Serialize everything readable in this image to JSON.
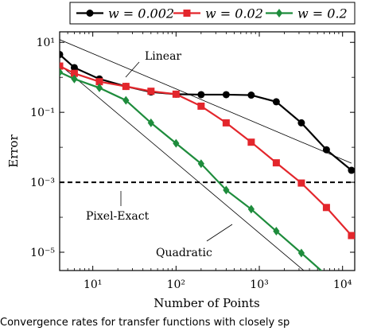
{
  "caption": "Convergence rates for transfer functions with closely sp",
  "chart_data": {
    "type": "line",
    "xlabel": "Number of Points",
    "ylabel": "Error",
    "xscale": "log",
    "yscale": "log",
    "xlim": [
      4,
      14000
    ],
    "ylim": [
      3e-06,
      20
    ],
    "x_ticks": [
      10,
      100,
      1000,
      10000
    ],
    "x_tick_labels": [
      "10¹",
      "10²",
      "10³",
      "10⁴"
    ],
    "y_ticks": [
      1e-05,
      0.001,
      0.1,
      10
    ],
    "y_tick_labels": [
      "10⁻⁵",
      "10⁻³",
      "10⁻¹",
      "10¹"
    ],
    "legend": "top",
    "series": [
      {
        "name": "w = 0.002",
        "color": "#000000",
        "marker": "circle",
        "x": [
          4,
          6,
          12,
          25,
          50,
          100,
          200,
          400,
          800,
          1600,
          3200,
          6400,
          12800
        ],
        "y": [
          4.5,
          1.9,
          0.9,
          0.55,
          0.38,
          0.33,
          0.32,
          0.32,
          0.31,
          0.2,
          0.05,
          0.0085,
          0.0022
        ]
      },
      {
        "name": "w = 0.02",
        "color": "#e3262c",
        "marker": "square",
        "x": [
          4,
          6,
          12,
          25,
          50,
          100,
          200,
          400,
          800,
          1600,
          3200,
          6400,
          12800
        ],
        "y": [
          2.1,
          1.3,
          0.75,
          0.55,
          0.4,
          0.33,
          0.15,
          0.05,
          0.014,
          0.0036,
          0.00095,
          0.00019,
          3e-05
        ]
      },
      {
        "name": "w = 0.2",
        "color": "#1e8c3c",
        "marker": "diamond",
        "x": [
          4,
          6,
          12,
          25,
          50,
          100,
          200,
          400,
          800,
          1600,
          3200,
          6400
        ],
        "y": [
          1.4,
          0.9,
          0.5,
          0.22,
          0.05,
          0.013,
          0.0034,
          0.0006,
          0.00017,
          4e-05,
          9.5e-06,
          2.2e-06
        ]
      }
    ],
    "reference_lines": [
      {
        "label": "Linear",
        "x": [
          4,
          12800
        ],
        "y": [
          12,
          0.0035
        ]
      },
      {
        "label": "Quadratic",
        "x": [
          4,
          5000
        ],
        "y": [
          2.3,
          1.4e-06
        ]
      }
    ],
    "threshold": {
      "label": "Pixel-Exact",
      "y": 0.001
    }
  }
}
